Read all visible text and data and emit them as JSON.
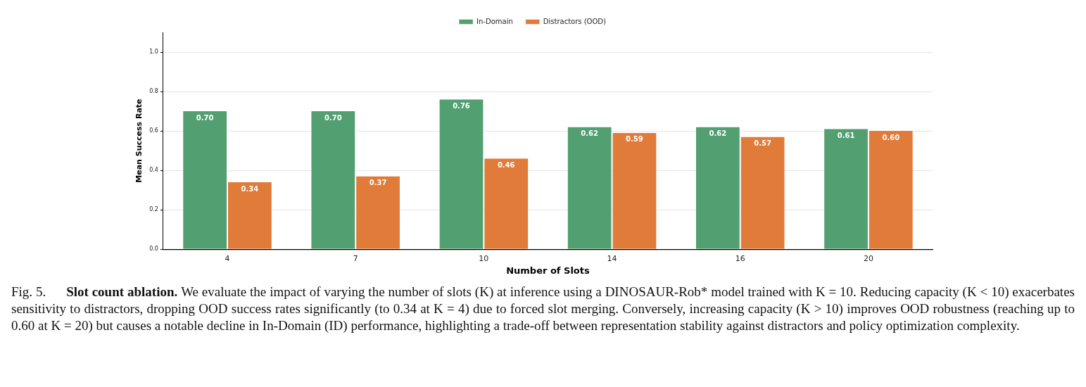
{
  "chart_data": {
    "type": "bar",
    "xlabel": "Number of Slots",
    "ylabel": "Mean Success Rate",
    "categories": [
      "4",
      "7",
      "10",
      "14",
      "16",
      "20"
    ],
    "series": [
      {
        "name": "In-Domain",
        "color": "#52a072",
        "values": [
          0.7,
          0.7,
          0.76,
          0.62,
          0.62,
          0.61
        ],
        "value_labels": [
          "0.70",
          "0.70",
          "0.76",
          "0.62",
          "0.62",
          "0.61"
        ]
      },
      {
        "name": "Distractors (OOD)",
        "color": "#e07b3a",
        "values": [
          0.34,
          0.37,
          0.46,
          0.59,
          0.57,
          0.6
        ],
        "value_labels": [
          "0.34",
          "0.37",
          "0.46",
          "0.59",
          "0.57",
          "0.60"
        ]
      }
    ],
    "ylim": [
      0,
      1.1
    ],
    "yticks": [
      {
        "value": 0,
        "label": "0.0"
      },
      {
        "value": 0.2,
        "label": "0.2"
      },
      {
        "value": 0.4,
        "label": "0.4"
      },
      {
        "value": 0.6,
        "label": "0.6"
      },
      {
        "value": 0.8,
        "label": "0.8"
      },
      {
        "value": 1,
        "label": "1.0"
      }
    ],
    "grid": "y",
    "legend": "top",
    "annotations": [
      "Fig. 5.",
      "Slot count ablation.",
      "We evaluate the impact of varying the number of slots (K) at inference using a DINOSAUR-Rob* model trained with K = 10. Reducing capacity (K < 10) exacerbates sensitivity to distractors, dropping OOD success rates significantly (to 0.34 at K = 4) due to forced slot merging. Conversely, increasing capacity (K > 10) improves OOD robustness (reaching up to 0.60 at K = 20) but causes a notable decline in In-Domain (ID) performance, highlighting a trade-off between representation stability against distractors and policy optimization complexity."
    ]
  }
}
